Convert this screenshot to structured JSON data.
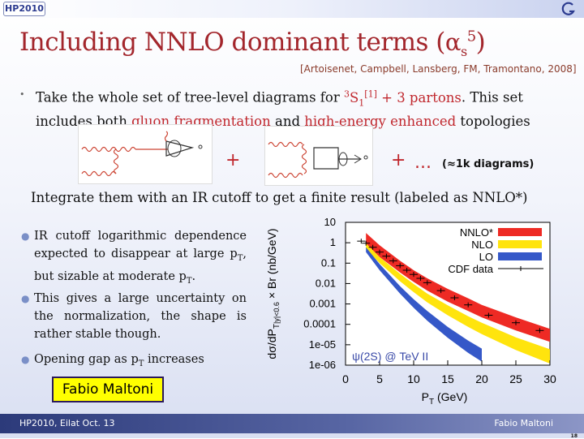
{
  "header": {
    "logo_text": "HP2010",
    "corner_logo_icon": "g-logo-icon"
  },
  "slide": {
    "title_main": "Including NNLO dominant terms (",
    "title_alpha": "α",
    "title_sub": "s",
    "title_sup": "5",
    "title_close": ")",
    "citation": "[Artoisenet, Campbell, Lansberg, FM, Tramontano,  2008]",
    "bullet1_a": "Take the whole set of tree-level diagrams for ",
    "bullet1_state_sup": "3",
    "bullet1_state": "S",
    "bullet1_state_sub": "1",
    "bullet1_state_sup2": "[1]",
    "bullet1_b": " + 3 partons",
    "bullet1_c": ". This set includes both ",
    "bullet1_gluon": "gluon fragmentation",
    "bullet1_and": " and ",
    "bullet1_he": "high-energy enhanced",
    "bullet1_d": " topologies",
    "plus": "+",
    "ellipsis": "...",
    "approx_label": "(≈1k diagrams)",
    "integrate": "Integrate them with an IR cutoff to get a finite result (labeled as NNLO*)",
    "left_bullets": [
      {
        "pre": "IR cutoff logarithmic dependence expected to disappear at large p",
        "sub": "T",
        "mid": ", but sizable at moderate p",
        "sub2": "T",
        "post": "."
      },
      {
        "text": "This gives a large uncertainty on the normalization, the shape is rather stable though."
      },
      {
        "pre": "Opening gap as p",
        "sub": "T",
        "post": " increases"
      }
    ],
    "name_box": "Fabio Maltoni"
  },
  "footer": {
    "left": "HP2010, Eilat Oct. 13",
    "right": "Fabio Maltoni",
    "page": "18"
  },
  "chart_data": {
    "type": "area",
    "y_scale": "log",
    "x_ticks": [
      "0",
      "5",
      "10",
      "15",
      "20",
      "25",
      "30"
    ],
    "y_ticks": [
      "10",
      "1",
      "0.1",
      "0.01",
      "0.001",
      "0.0001",
      "1e-05",
      "1e-06"
    ],
    "xlabel": "P_T (GeV)",
    "ylabel": "dσ/dP_T|_{|y|<0.6} × Br  (nb/GeV)",
    "xlim": [
      0,
      30
    ],
    "ylim": [
      1e-06,
      10
    ],
    "annotation": "ψ(2S) @ TeV II",
    "legend": [
      "NNLO*",
      "NLO",
      "LO",
      "CDF data"
    ],
    "legend_position": "top-right",
    "colors": {
      "nnlo": "#ee2a24",
      "nlo": "#ffe40d",
      "lo": "#3558c8",
      "cdf": "#000000"
    },
    "series": [
      {
        "name": "NNLO*",
        "x": [
          3,
          5,
          8,
          10,
          12,
          15,
          18,
          20,
          25,
          30
        ],
        "low": [
          0.9,
          0.2,
          0.035,
          0.012,
          0.0045,
          0.0013,
          0.00045,
          0.00022,
          5e-05,
          1.4e-05
        ],
        "high": [
          3.0,
          0.75,
          0.13,
          0.045,
          0.018,
          0.0055,
          0.0019,
          0.0009,
          0.00022,
          6e-05
        ]
      },
      {
        "name": "NLO",
        "x": [
          3,
          5,
          8,
          10,
          12,
          15,
          18,
          20,
          25,
          30
        ],
        "low": [
          0.5,
          0.1,
          0.013,
          0.0038,
          0.0012,
          0.00028,
          7.5e-05,
          3.3e-05,
          5.5e-06,
          1.2e-06
        ],
        "high": [
          0.95,
          0.2,
          0.03,
          0.0095,
          0.0032,
          0.00085,
          0.00025,
          0.00012,
          2.3e-05,
          6e-06
        ]
      },
      {
        "name": "LO",
        "x": [
          3,
          5,
          8,
          10,
          12,
          15,
          18,
          20
        ],
        "low": [
          0.35,
          0.045,
          0.0032,
          0.00065,
          0.00015,
          2.2e-05,
          4e-06,
          1.5e-06
        ],
        "high": [
          0.6,
          0.09,
          0.0075,
          0.0017,
          0.00045,
          7.5e-05,
          1.6e-05,
          6.5e-06
        ]
      },
      {
        "name": "CDF data",
        "x": [
          2.3,
          3,
          4,
          5,
          6,
          7,
          8,
          9,
          10,
          11,
          12,
          14,
          16,
          18,
          21,
          25,
          28.5
        ],
        "y": [
          1.2,
          0.95,
          0.6,
          0.35,
          0.22,
          0.13,
          0.075,
          0.045,
          0.028,
          0.018,
          0.011,
          0.0045,
          0.002,
          0.0009,
          0.00028,
          0.00012,
          5e-05
        ]
      }
    ]
  }
}
